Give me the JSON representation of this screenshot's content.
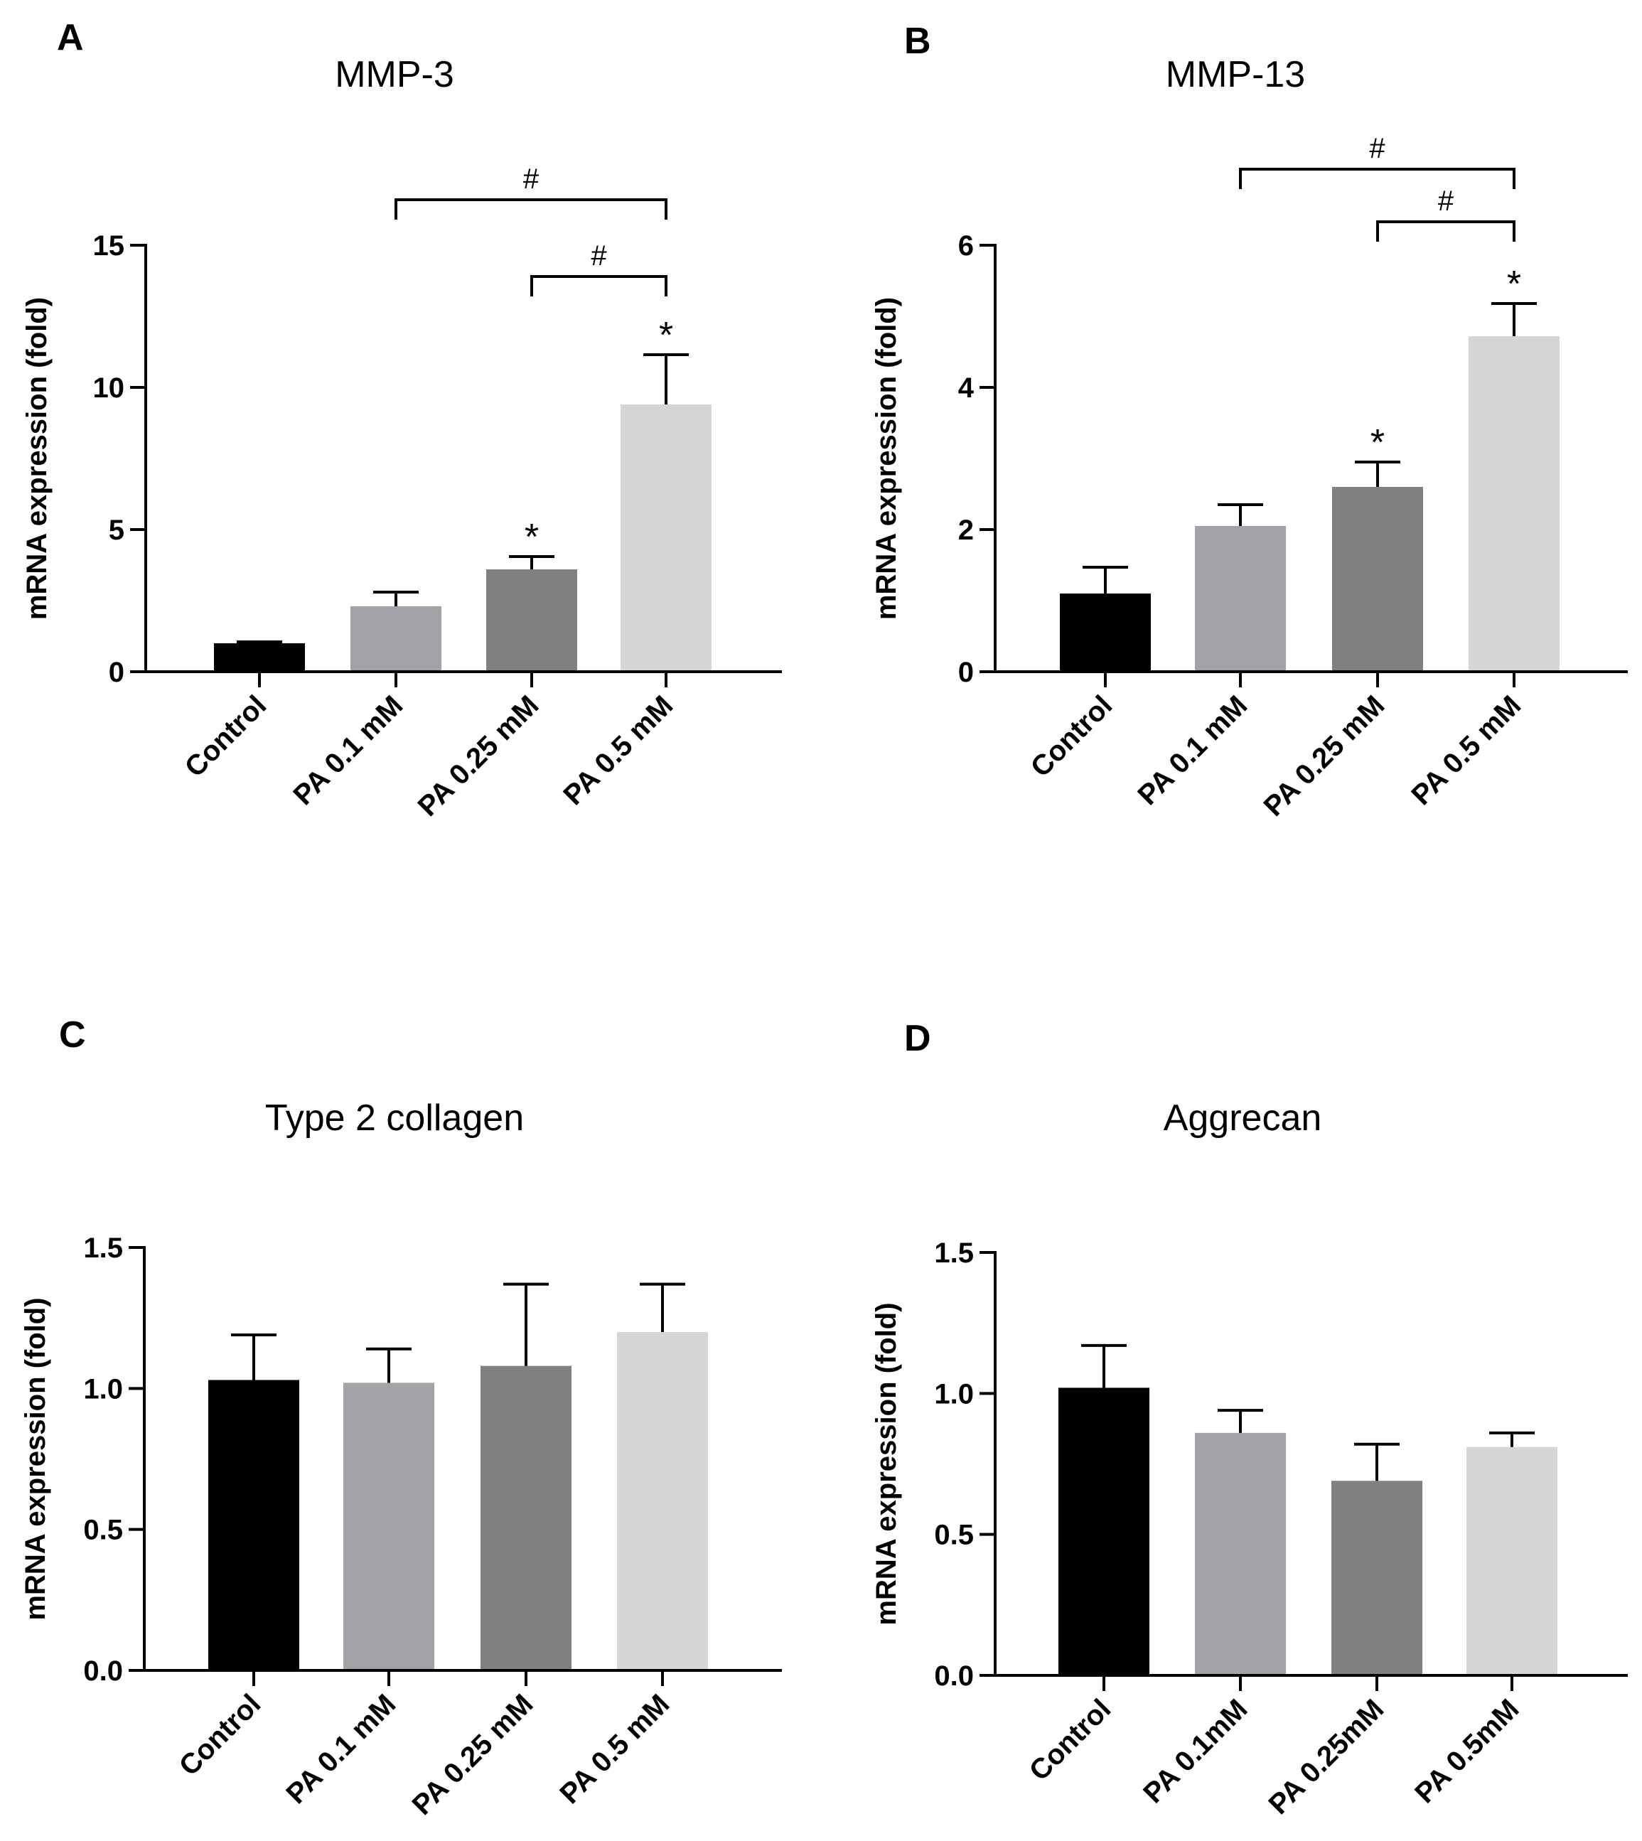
{
  "figure_description": "Four-panel bar chart figure of relative mRNA expression",
  "colors": {
    "bar_colors": [
      "#000000",
      "#a3a2a7",
      "#808080",
      "#d6d6d6"
    ],
    "axis": "#000000",
    "background": "#ffffff"
  },
  "chart_data": [
    {
      "panel_letter": "A",
      "type": "bar",
      "title": "MMP-3",
      "xlabel": "",
      "ylabel": "mRNA expression (fold)",
      "ylim": [
        0,
        15
      ],
      "yticks": [
        0,
        5,
        10,
        15
      ],
      "ytick_labels": [
        "0",
        "5",
        "10",
        "15"
      ],
      "categories": [
        "Control",
        "PA 0.1 mM",
        "PA 0.25 mM",
        "PA 0.5 mM"
      ],
      "values": [
        1.0,
        2.3,
        3.6,
        9.4
      ],
      "error_upper": [
        1.05,
        2.8,
        4.05,
        11.15
      ],
      "significance": [
        "",
        "",
        "*",
        "*"
      ],
      "brackets": [
        {
          "from": 1,
          "to": 3,
          "label": "#",
          "level": 16.6
        },
        {
          "from": 2,
          "to": 3,
          "label": "#",
          "level": 13.9
        }
      ]
    },
    {
      "panel_letter": "B",
      "type": "bar",
      "title": "MMP-13",
      "xlabel": "",
      "ylabel": "mRNA expression (fold)",
      "ylim": [
        0,
        6
      ],
      "yticks": [
        0,
        2,
        4,
        6
      ],
      "ytick_labels": [
        "0",
        "2",
        "4",
        "6"
      ],
      "categories": [
        "Control",
        "PA 0.1 mM",
        "PA 0.25 mM",
        "PA 0.5 mM"
      ],
      "values": [
        1.1,
        2.05,
        2.6,
        4.72
      ],
      "error_upper": [
        1.47,
        2.35,
        2.95,
        5.18
      ],
      "significance": [
        "",
        "",
        "*",
        "*"
      ],
      "brackets": [
        {
          "from": 1,
          "to": 3,
          "label": "#",
          "level": 7.07
        },
        {
          "from": 2,
          "to": 3,
          "label": "#",
          "level": 6.33
        }
      ]
    },
    {
      "panel_letter": "C",
      "type": "bar",
      "title": "Type 2 collagen",
      "xlabel": "",
      "ylabel": "mRNA expression (fold)",
      "ylim": [
        0,
        1.5
      ],
      "yticks": [
        0,
        0.5,
        1.0,
        1.5
      ],
      "ytick_labels": [
        "0.0",
        "0.5",
        "1.0",
        "1.5"
      ],
      "categories": [
        "Control",
        "PA 0.1 mM",
        "PA 0.25 mM",
        "PA 0.5 mM"
      ],
      "values": [
        1.03,
        1.02,
        1.08,
        1.2
      ],
      "error_upper": [
        1.19,
        1.14,
        1.37,
        1.37
      ],
      "significance": [
        "",
        "",
        "",
        ""
      ],
      "brackets": []
    },
    {
      "panel_letter": "D",
      "type": "bar",
      "title": "Aggrecan",
      "xlabel": "",
      "ylabel": "mRNA expression (fold)",
      "ylim": [
        0,
        1.5
      ],
      "yticks": [
        0,
        0.5,
        1.0,
        1.5
      ],
      "ytick_labels": [
        "0.0",
        "0.5",
        "1.0",
        "1.5"
      ],
      "categories": [
        "Control",
        "PA 0.1mM",
        "PA 0.25mM",
        "PA 0.5mM"
      ],
      "values": [
        1.02,
        0.86,
        0.69,
        0.81
      ],
      "error_upper": [
        1.17,
        0.94,
        0.82,
        0.86
      ],
      "significance": [
        "",
        "",
        "",
        ""
      ],
      "brackets": []
    }
  ]
}
